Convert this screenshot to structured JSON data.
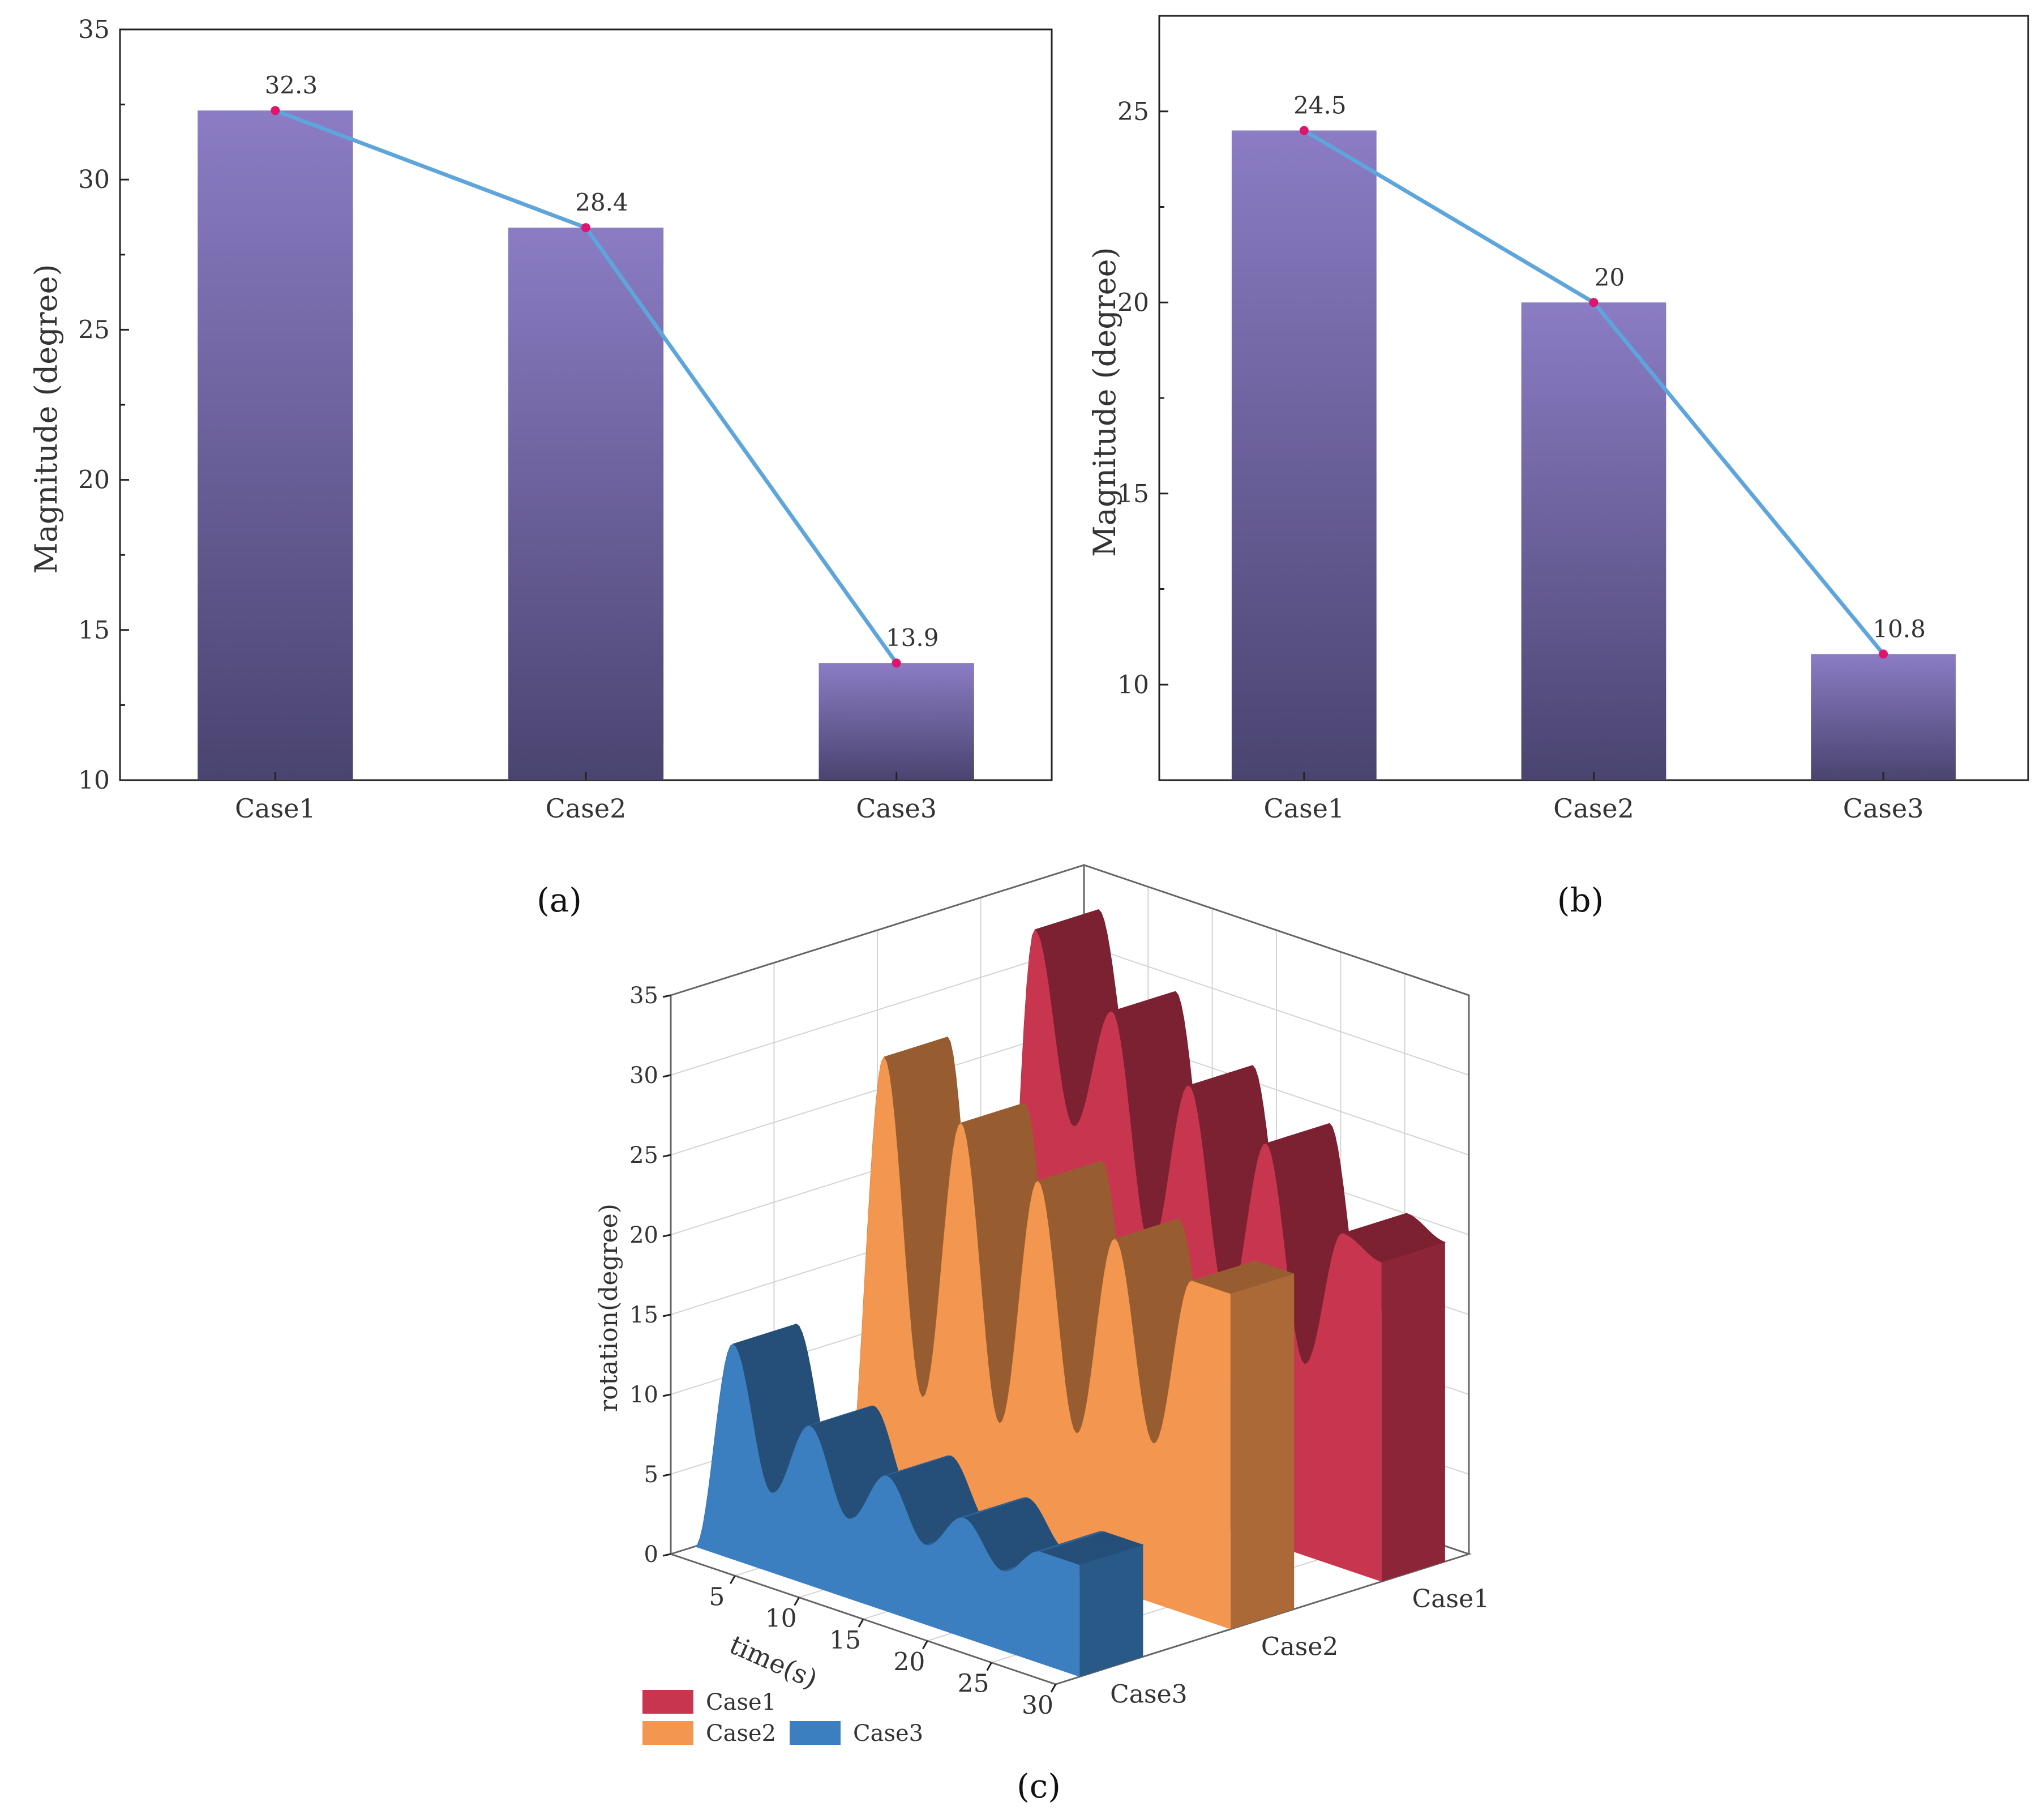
{
  "colors": {
    "bar_top": "#8b7cc4",
    "bar_bottom": "#4a4470",
    "line": "#5ea5dc",
    "marker": "#e0146e",
    "case1": "#c8354f",
    "case2": "#f3964f",
    "case3": "#3b7fc1"
  },
  "chart_data": [
    {
      "panel": "(a)",
      "type": "bar",
      "categories": [
        "Case1",
        "Case2",
        "Case3"
      ],
      "values": [
        32.3,
        28.4,
        13.9
      ],
      "data_labels": [
        "32.3",
        "28.4",
        "13.9"
      ],
      "ylabel": "Magnitude (degree)",
      "ylim": [
        10,
        35
      ],
      "yticks": [
        "10",
        "15",
        "20",
        "25",
        "30",
        "35"
      ],
      "overlay_line": true,
      "grid": false
    },
    {
      "panel": "(b)",
      "type": "bar",
      "categories": [
        "Case1",
        "Case2",
        "Case3"
      ],
      "values": [
        24.5,
        20,
        10.8
      ],
      "data_labels": [
        "24.5",
        "20",
        "10.8"
      ],
      "ylabel": "Magnitude (degree)",
      "ylim": [
        7.5,
        27.5
      ],
      "yticks": [
        "10",
        "15",
        "20",
        "25"
      ],
      "overlay_line": true,
      "grid": false
    },
    {
      "panel": "(c)",
      "type": "area",
      "projection": "3d",
      "series": [
        {
          "name": "Case1",
          "x": [
            0,
            3,
            6,
            9,
            12,
            15,
            18,
            21,
            24,
            27,
            30
          ],
          "values": [
            0,
            33.5,
            22,
            30,
            16,
            27,
            14,
            25,
            12,
            21,
            20
          ]
        },
        {
          "name": "Case2",
          "x": [
            0,
            3,
            6,
            9,
            12,
            15,
            18,
            21,
            24,
            27,
            30
          ],
          "values": [
            0,
            28.5,
            8,
            26,
            8,
            24,
            9,
            22,
            10,
            21,
            21
          ]
        },
        {
          "name": "Case3",
          "x": [
            0,
            3,
            6,
            9,
            12,
            15,
            18,
            21,
            24,
            27,
            30
          ],
          "values": [
            0,
            13.5,
            5,
            10,
            5,
            8.5,
            5,
            7.5,
            5,
            7,
            7
          ]
        }
      ],
      "xlabel": "time(s)",
      "ylabel": "rotation(degree)",
      "xticks": [
        "5",
        "10",
        "15",
        "20",
        "25",
        "30"
      ],
      "zticks": [
        "0",
        "5",
        "10",
        "15",
        "20",
        "25",
        "30",
        "35"
      ],
      "depth_labels": [
        "Case1",
        "Case2",
        "Case3"
      ],
      "legend": [
        "Case1",
        "Case2",
        "Case3"
      ],
      "legend_position": "bottom-left"
    }
  ],
  "panel_labels": {
    "a": "(a)",
    "b": "(b)",
    "c": "(c)"
  }
}
